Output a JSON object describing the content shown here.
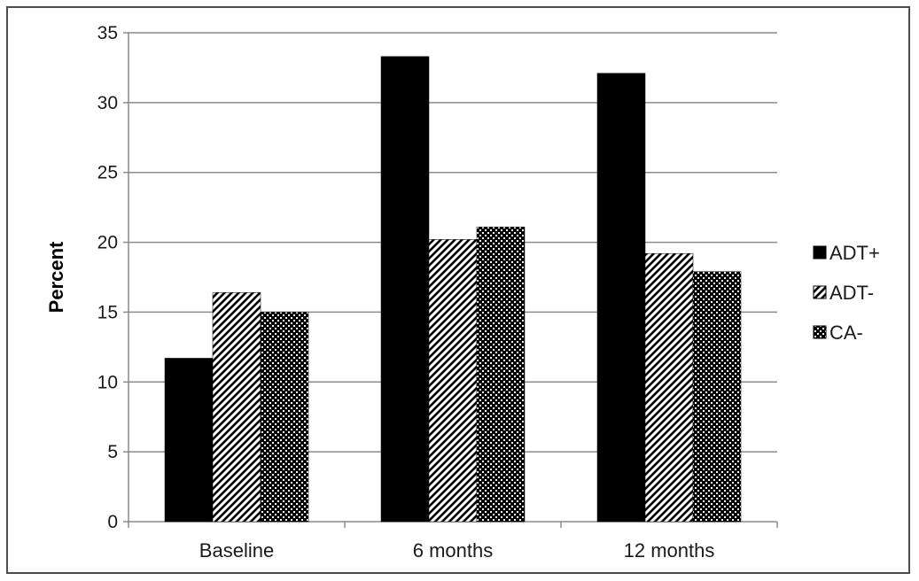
{
  "chart_data": {
    "type": "bar",
    "title": "",
    "xlabel": "",
    "ylabel": "Percent",
    "ylim": [
      0,
      35
    ],
    "yticks": [
      0,
      5,
      10,
      15,
      20,
      25,
      30,
      35
    ],
    "grid": true,
    "legend_position": "right",
    "categories": [
      "Baseline",
      "6 months",
      "12 months"
    ],
    "series": [
      {
        "name": "ADT+",
        "pattern": "solid",
        "color": "#000000",
        "values": [
          11.7,
          33.3,
          32.1
        ]
      },
      {
        "name": "ADT-",
        "pattern": "diagonal-stripes",
        "color": "#000000",
        "values": [
          16.4,
          20.2,
          19.2
        ]
      },
      {
        "name": "CA-",
        "pattern": "checker",
        "color": "#000000",
        "values": [
          15.0,
          21.1,
          17.9
        ]
      }
    ]
  }
}
